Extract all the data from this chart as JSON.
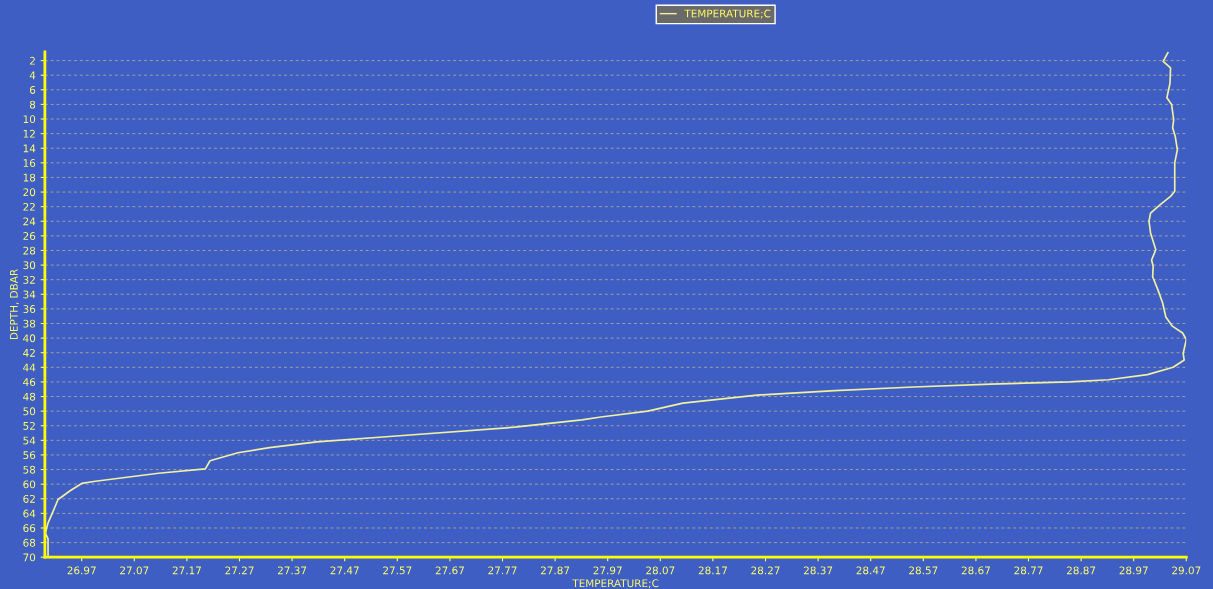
{
  "chart_data": {
    "type": "line",
    "xlabel": "TEMPERATURE;C",
    "ylabel": "DEPTH, DBAR",
    "xlim": [
      26.9,
      29.07
    ],
    "ylim": [
      70,
      0.8
    ],
    "xticks": [
      26.97,
      27.07,
      27.17,
      27.27,
      27.37,
      27.47,
      27.57,
      27.67,
      27.77,
      27.87,
      27.97,
      28.07,
      28.17,
      28.27,
      28.37,
      28.47,
      28.57,
      28.67,
      28.77,
      28.87,
      28.97,
      29.07
    ],
    "yticks": [
      2,
      4,
      6,
      8,
      10,
      12,
      14,
      16,
      18,
      20,
      22,
      24,
      26,
      28,
      30,
      32,
      34,
      36,
      38,
      40,
      42,
      44,
      46,
      48,
      50,
      52,
      54,
      56,
      58,
      60,
      62,
      64,
      66,
      68,
      70
    ],
    "grid": "y",
    "legend": "top",
    "marker": "none",
    "line_style": "solid",
    "series": [
      {
        "name": "TEMPERATURE;C",
        "color": "#f0f0a0",
        "x": [
          29.035,
          29.026,
          29.04,
          29.039,
          29.033,
          29.042,
          29.046,
          29.044,
          29.049,
          29.053,
          29.048,
          29.048,
          29.04,
          29.021,
          29.002,
          28.999,
          29.002,
          29.012,
          29.004,
          29.007,
          29.006,
          29.016,
          29.025,
          29.031,
          29.044,
          29.063,
          29.07,
          29.064,
          29.066,
          29.045,
          28.996,
          28.922,
          28.848,
          28.699,
          28.551,
          28.402,
          28.254,
          28.113,
          28.046,
          27.957,
          27.921,
          27.793,
          27.568,
          27.417,
          27.327,
          27.267,
          27.214,
          27.205,
          27.116,
          26.996,
          26.97,
          26.948,
          26.925,
          26.914,
          26.906,
          26.901,
          26.906,
          26.906
        ],
        "values": [
          0.9,
          2.1,
          3.0,
          5.1,
          7.1,
          8.0,
          10.1,
          11.2,
          12.4,
          14.2,
          16.0,
          19.9,
          20.6,
          21.7,
          22.9,
          24.0,
          25.6,
          27.9,
          29.3,
          30.2,
          31.6,
          33.4,
          35.2,
          37.1,
          38.4,
          39.3,
          40.2,
          42.1,
          43.0,
          44.0,
          45.0,
          45.7,
          46.0,
          46.3,
          46.7,
          47.2,
          47.8,
          48.9,
          50.0,
          50.8,
          51.2,
          52.2,
          53.4,
          54.2,
          55.0,
          55.7,
          56.8,
          57.9,
          58.5,
          59.6,
          59.9,
          60.9,
          62.1,
          64.0,
          65.3,
          66.7,
          67.5,
          69.9
        ]
      }
    ]
  }
}
